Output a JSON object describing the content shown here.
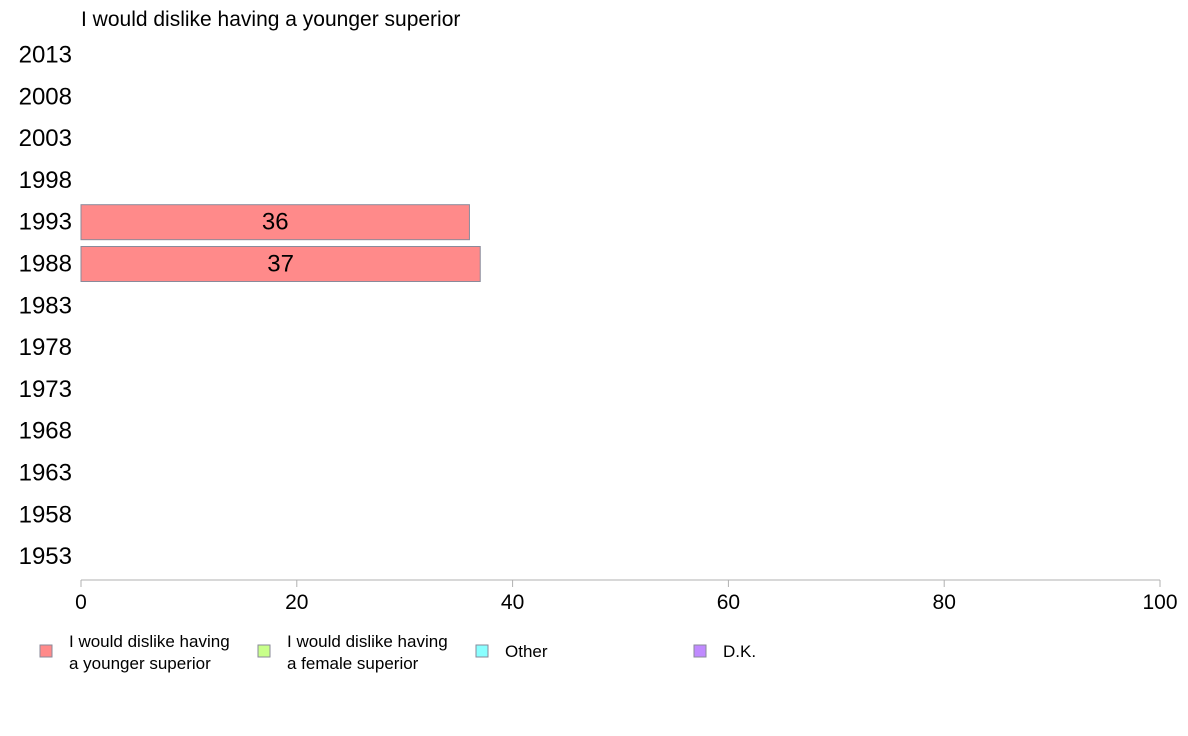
{
  "chart_data": {
    "type": "bar",
    "orientation": "horizontal",
    "title": "I would dislike having a younger superior",
    "categories": [
      "2013",
      "2008",
      "2003",
      "1998",
      "1993",
      "1988",
      "1983",
      "1978",
      "1973",
      "1968",
      "1963",
      "1958",
      "1953"
    ],
    "series": [
      {
        "name": "I would dislike having a younger superior",
        "color": "#ff8a8a",
        "values": [
          null,
          null,
          null,
          null,
          36,
          37,
          null,
          null,
          null,
          null,
          null,
          null,
          null
        ]
      }
    ],
    "xlim": [
      0,
      100
    ],
    "xticks": [
      0,
      20,
      40,
      60,
      80,
      100
    ],
    "legend": {
      "position": "bottom",
      "entries": [
        {
          "lines": [
            "I would dislike having",
            "a younger superior"
          ],
          "color": "#ff8a8a"
        },
        {
          "lines": [
            "I would dislike having",
            "a female superior"
          ],
          "color": "#c8ff8a"
        },
        {
          "lines": [
            "Other"
          ],
          "color": "#8affff"
        },
        {
          "lines": [
            "D.K."
          ],
          "color": "#c08aff"
        }
      ]
    },
    "grid": false
  }
}
